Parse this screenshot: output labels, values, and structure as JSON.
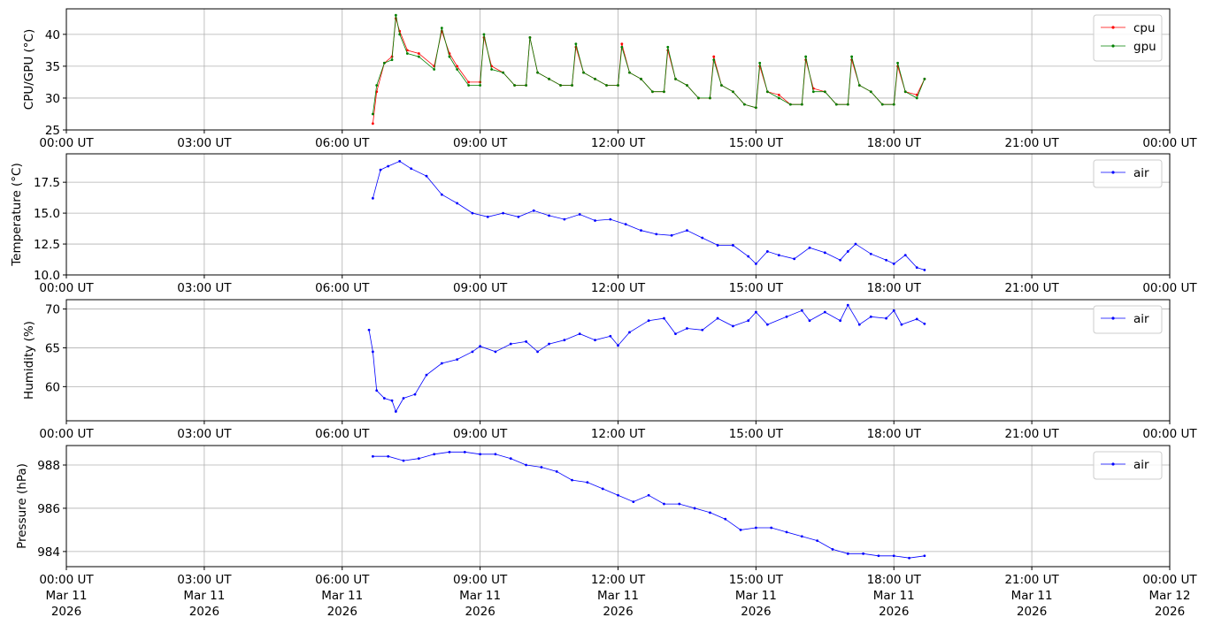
{
  "x_axis": {
    "time_labels": [
      "00:00 UT",
      "03:00 UT",
      "06:00 UT",
      "09:00 UT",
      "12:00 UT",
      "15:00 UT",
      "18:00 UT",
      "21:00 UT",
      "00:00 UT"
    ],
    "date_labels": [
      "Mar 11",
      "Mar 11",
      "Mar 11",
      "Mar 11",
      "Mar 11",
      "Mar 11",
      "Mar 11",
      "Mar 11",
      "Mar 12"
    ],
    "year_labels": [
      "2026",
      "2026",
      "2026",
      "2026",
      "2026",
      "2026",
      "2026",
      "2026",
      "2026"
    ],
    "range": [
      "2026-03-11T00:00",
      "2026-03-12T00:00"
    ]
  },
  "chart_data": [
    {
      "type": "line",
      "ylabel": "CPU/GPU (°C)",
      "ylim": [
        25,
        44
      ],
      "yticks": [
        25,
        30,
        35,
        40
      ],
      "grid": true,
      "legend": "top-right",
      "x": [
        "06:40",
        "06:45",
        "06:55",
        "07:05",
        "07:10",
        "07:15",
        "07:25",
        "07:40",
        "08:00",
        "08:10",
        "08:20",
        "08:30",
        "08:45",
        "09:00",
        "09:05",
        "09:15",
        "09:30",
        "09:45",
        "10:00",
        "10:05",
        "10:15",
        "10:30",
        "10:45",
        "11:00",
        "11:05",
        "11:15",
        "11:30",
        "11:45",
        "12:00",
        "12:05",
        "12:15",
        "12:30",
        "12:45",
        "13:00",
        "13:05",
        "13:15",
        "13:30",
        "13:45",
        "14:00",
        "14:05",
        "14:15",
        "14:30",
        "14:45",
        "15:00",
        "15:05",
        "15:15",
        "15:30",
        "15:45",
        "16:00",
        "16:05",
        "16:15",
        "16:30",
        "16:45",
        "17:00",
        "17:05",
        "17:15",
        "17:30",
        "17:45",
        "18:00",
        "18:05",
        "18:15",
        "18:30",
        "18:40"
      ],
      "series": [
        {
          "name": "cpu",
          "color": "#ff0000",
          "values": [
            26,
            31,
            35.5,
            36.5,
            42.5,
            40.5,
            37.5,
            37,
            35,
            40.5,
            37,
            35,
            32.5,
            32.5,
            39.5,
            35,
            34,
            32,
            32,
            39.5,
            34,
            33,
            32,
            32,
            38,
            34,
            33,
            32,
            32,
            38.5,
            34,
            33,
            31,
            31,
            37.5,
            33,
            32,
            30,
            30,
            36.5,
            32,
            31,
            29,
            28.5,
            35,
            31,
            30.5,
            29,
            29,
            36,
            31.5,
            31,
            29,
            29,
            36,
            32,
            31,
            29,
            29,
            35,
            31,
            30.5,
            33
          ]
        },
        {
          "name": "gpu",
          "color": "#008000",
          "values": [
            27.5,
            32,
            35.5,
            36,
            43,
            40,
            37,
            36.5,
            34.5,
            41,
            36.5,
            34.5,
            32,
            32,
            40,
            34.5,
            34,
            32,
            32,
            39.5,
            34,
            33,
            32,
            32,
            38.5,
            34,
            33,
            32,
            32,
            38,
            34,
            33,
            31,
            31,
            38,
            33,
            32,
            30,
            30,
            36,
            32,
            31,
            29,
            28.5,
            35.5,
            31,
            30,
            29,
            29,
            36.5,
            31,
            31,
            29,
            29,
            36.5,
            32,
            31,
            29,
            29,
            35.5,
            31,
            30,
            33
          ]
        }
      ]
    },
    {
      "type": "line",
      "ylabel": "Temperature (°C)",
      "ylim": [
        10,
        19.8
      ],
      "yticks": [
        10.0,
        12.5,
        15.0,
        17.5
      ],
      "ytick_labels": [
        "10.0",
        "12.5",
        "15.0",
        "17.5"
      ],
      "grid": true,
      "legend": "top-right",
      "x": [
        "06:40",
        "06:50",
        "07:00",
        "07:15",
        "07:30",
        "07:50",
        "08:10",
        "08:30",
        "08:50",
        "09:10",
        "09:30",
        "09:50",
        "10:10",
        "10:30",
        "10:50",
        "11:10",
        "11:30",
        "11:50",
        "12:10",
        "12:30",
        "12:50",
        "13:10",
        "13:30",
        "13:50",
        "14:10",
        "14:30",
        "14:50",
        "15:00",
        "15:15",
        "15:30",
        "15:50",
        "16:10",
        "16:30",
        "16:50",
        "17:00",
        "17:10",
        "17:30",
        "17:50",
        "18:00",
        "18:15",
        "18:30",
        "18:40"
      ],
      "series": [
        {
          "name": "air",
          "color": "#0000ff",
          "values": [
            16.2,
            18.5,
            18.8,
            19.2,
            18.6,
            18.0,
            16.5,
            15.8,
            15.0,
            14.7,
            15.0,
            14.7,
            15.2,
            14.8,
            14.5,
            14.9,
            14.4,
            14.5,
            14.1,
            13.6,
            13.3,
            13.2,
            13.6,
            13.0,
            12.4,
            12.4,
            11.5,
            10.9,
            11.9,
            11.6,
            11.3,
            12.2,
            11.8,
            11.2,
            11.9,
            12.5,
            11.7,
            11.2,
            10.9,
            11.6,
            10.6,
            10.4
          ]
        }
      ]
    },
    {
      "type": "line",
      "ylabel": "Humidity (%)",
      "ylim": [
        55.6,
        71.2
      ],
      "yticks": [
        60,
        65,
        70
      ],
      "grid": true,
      "legend": "top-right",
      "x": [
        "06:35",
        "06:40",
        "06:45",
        "06:55",
        "07:05",
        "07:10",
        "07:20",
        "07:35",
        "07:50",
        "08:10",
        "08:30",
        "08:50",
        "09:00",
        "09:20",
        "09:40",
        "10:00",
        "10:15",
        "10:30",
        "10:50",
        "11:10",
        "11:30",
        "11:50",
        "12:00",
        "12:15",
        "12:40",
        "13:00",
        "13:15",
        "13:30",
        "13:50",
        "14:10",
        "14:30",
        "14:50",
        "15:00",
        "15:15",
        "15:40",
        "16:00",
        "16:10",
        "16:30",
        "16:50",
        "17:00",
        "17:15",
        "17:30",
        "17:50",
        "18:00",
        "18:10",
        "18:30",
        "18:40"
      ],
      "series": [
        {
          "name": "air",
          "color": "#0000ff",
          "values": [
            67.3,
            64.5,
            59.5,
            58.5,
            58.2,
            56.8,
            58.5,
            59.0,
            61.5,
            63.0,
            63.5,
            64.5,
            65.2,
            64.5,
            65.5,
            65.8,
            64.5,
            65.5,
            66.0,
            66.8,
            66.0,
            66.5,
            65.3,
            67.0,
            68.5,
            68.8,
            66.8,
            67.5,
            67.3,
            68.8,
            67.8,
            68.5,
            69.6,
            68.0,
            69.0,
            69.8,
            68.5,
            69.6,
            68.5,
            70.5,
            68.0,
            69.0,
            68.8,
            69.8,
            68.0,
            68.7,
            68.1
          ]
        }
      ]
    },
    {
      "type": "line",
      "ylabel": "Pressure (hPa)",
      "ylim": [
        983.3,
        988.9
      ],
      "yticks": [
        984,
        986,
        988
      ],
      "grid": true,
      "legend": "top-right",
      "x": [
        "06:40",
        "07:00",
        "07:20",
        "07:40",
        "08:00",
        "08:20",
        "08:40",
        "09:00",
        "09:20",
        "09:40",
        "10:00",
        "10:20",
        "10:40",
        "11:00",
        "11:20",
        "11:40",
        "12:00",
        "12:20",
        "12:40",
        "13:00",
        "13:20",
        "13:40",
        "14:00",
        "14:20",
        "14:40",
        "15:00",
        "15:20",
        "15:40",
        "16:00",
        "16:20",
        "16:40",
        "17:00",
        "17:20",
        "17:40",
        "18:00",
        "18:20",
        "18:40"
      ],
      "series": [
        {
          "name": "air",
          "color": "#0000ff",
          "values": [
            988.4,
            988.4,
            988.2,
            988.3,
            988.5,
            988.6,
            988.6,
            988.5,
            988.5,
            988.3,
            988.0,
            987.9,
            987.7,
            987.3,
            987.2,
            986.9,
            986.6,
            986.3,
            986.6,
            986.2,
            986.2,
            986.0,
            985.8,
            985.5,
            985.0,
            985.1,
            985.1,
            984.9,
            984.7,
            984.5,
            984.1,
            983.9,
            983.9,
            983.8,
            983.8,
            983.7,
            983.8
          ]
        }
      ]
    }
  ]
}
